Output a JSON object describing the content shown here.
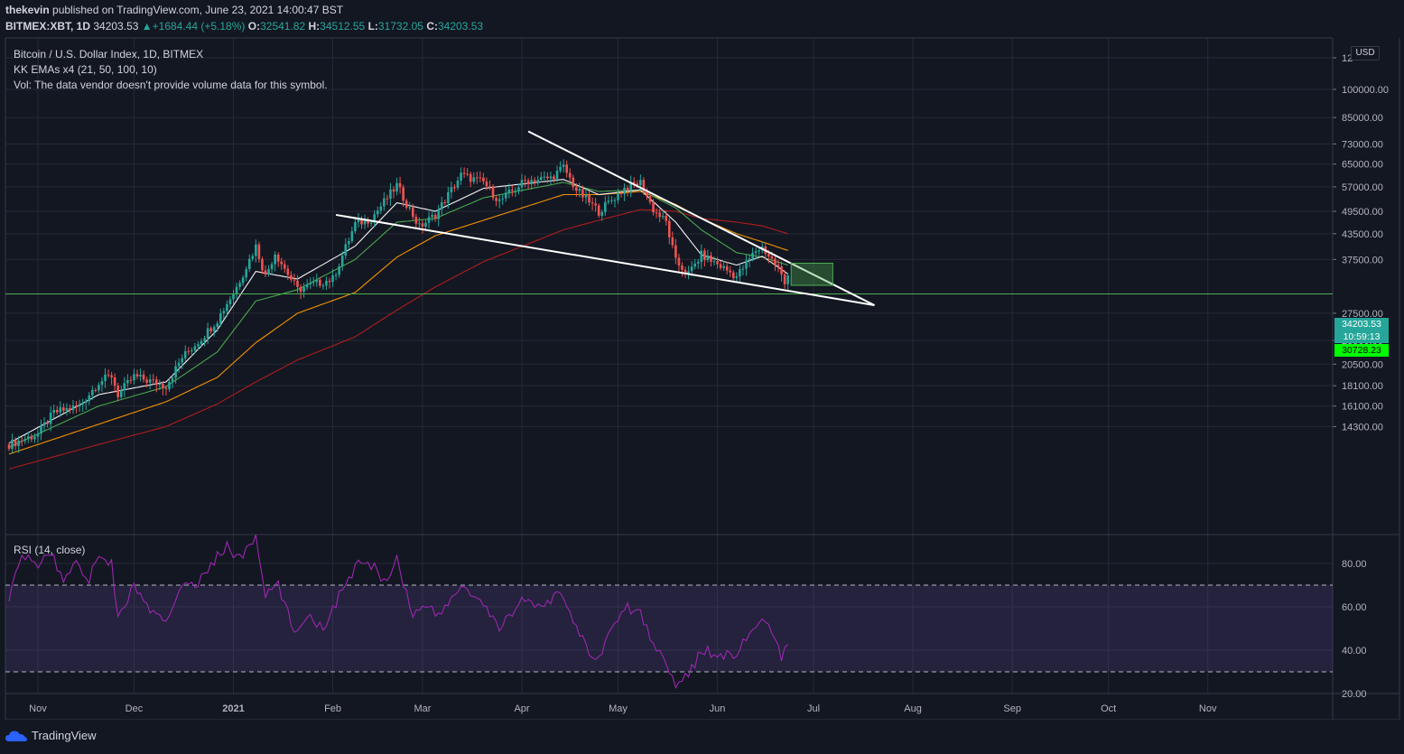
{
  "header": {
    "author": "thekevin",
    "published_text": "published on TradingView.com, June 23, 2021 14:00:47 BST",
    "symbol": "BITMEX:XBT, 1D",
    "last_price": "34203.53",
    "change": "+1684.44 (+5.18%)",
    "open_label": "O:",
    "open": "32541.82",
    "high_label": "H:",
    "high": "34512.55",
    "low_label": "L:",
    "low": "31732.05",
    "close_label": "C:",
    "close": "34203.53"
  },
  "legend": {
    "title": "Bitcoin / U.S. Dollar Index, 1D, BITMEX",
    "indicator": "KK EMAs x4 (21, 50, 100, 10)",
    "volume_note": "Vol: The data vendor doesn't provide volume data for this symbol."
  },
  "currency": "USD",
  "price_tags": {
    "last": "34203.53",
    "countdown": "10:59:13",
    "support": "30728.23"
  },
  "rsi": {
    "label": "RSI (14, close)",
    "upper_band": 70,
    "lower_band": 30
  },
  "branding": "TradingView",
  "colors": {
    "background": "#131722",
    "up": "#26a69a",
    "down": "#ef5350",
    "ema10": "#ffffff",
    "ema21": "#4caf50",
    "ema50": "#ff9800",
    "ema100": "#b71c1c",
    "rsi": "#9c27b0",
    "support": "#4caf50"
  },
  "chart_data": [
    {
      "type": "candlestick",
      "title": "Bitcoin / U.S. Dollar Index, 1D, BITMEX",
      "scale": "log",
      "x_tick_labels": [
        "Nov",
        "Dec",
        "2021",
        "Feb",
        "Mar",
        "Apr",
        "May",
        "Jun",
        "Jul",
        "Aug",
        "Sep",
        "Oct",
        "Nov"
      ],
      "y_tick_labels": [
        "12",
        "100000.00",
        "85000.00",
        "73000.00",
        "65000.00",
        "57000.00",
        "49500.00",
        "43500.00",
        "37500.00",
        "27500.00",
        "23500.00",
        "20500.00",
        "18100.00",
        "16100.00",
        "14300.00"
      ],
      "ylim": [
        13000,
        120000
      ],
      "x_start": "2020-10-23",
      "close_series": [
        [
          "2020-10-23",
          12900
        ],
        [
          "2020-11-01",
          13700
        ],
        [
          "2020-11-06",
          15500
        ],
        [
          "2020-11-14",
          16100
        ],
        [
          "2020-11-20",
          18500
        ],
        [
          "2020-11-24",
          19200
        ],
        [
          "2020-11-26",
          17200
        ],
        [
          "2020-12-01",
          19100
        ],
        [
          "2020-12-11",
          18100
        ],
        [
          "2020-12-16",
          21300
        ],
        [
          "2020-12-22",
          23800
        ],
        [
          "2020-12-27",
          26500
        ],
        [
          "2021-01-02",
          32000
        ],
        [
          "2021-01-08",
          40500
        ],
        [
          "2021-01-11",
          34000
        ],
        [
          "2021-01-14",
          39000
        ],
        [
          "2021-01-21",
          31500
        ],
        [
          "2021-01-26",
          32500
        ],
        [
          "2021-02-01",
          33500
        ],
        [
          "2021-02-08",
          46000
        ],
        [
          "2021-02-13",
          47500
        ],
        [
          "2021-02-21",
          57500
        ],
        [
          "2021-02-28",
          45200
        ],
        [
          "2021-03-05",
          48500
        ],
        [
          "2021-03-13",
          61000
        ],
        [
          "2021-03-20",
          58500
        ],
        [
          "2021-03-25",
          52500
        ],
        [
          "2021-04-02",
          59000
        ],
        [
          "2021-04-10",
          60000
        ],
        [
          "2021-04-14",
          63800
        ],
        [
          "2021-04-18",
          56000
        ],
        [
          "2021-04-25",
          49500
        ],
        [
          "2021-05-03",
          56500
        ],
        [
          "2021-05-08",
          58500
        ],
        [
          "2021-05-12",
          50000
        ],
        [
          "2021-05-16",
          46500
        ],
        [
          "2021-05-19",
          37000
        ],
        [
          "2021-05-23",
          34500
        ],
        [
          "2021-05-27",
          38500
        ],
        [
          "2021-06-01",
          36500
        ],
        [
          "2021-06-07",
          34000
        ],
        [
          "2021-06-13",
          39500
        ],
        [
          "2021-06-15",
          40200
        ],
        [
          "2021-06-20",
          35700
        ],
        [
          "2021-06-22",
          32500
        ],
        [
          "2021-06-23",
          34203
        ]
      ],
      "ema10_series": [
        [
          "2020-10-23",
          13000
        ],
        [
          "2020-11-20",
          17200
        ],
        [
          "2020-12-11",
          18500
        ],
        [
          "2020-12-27",
          25000
        ],
        [
          "2021-01-08",
          35000
        ],
        [
          "2021-01-21",
          33500
        ],
        [
          "2021-02-08",
          40500
        ],
        [
          "2021-02-21",
          52000
        ],
        [
          "2021-03-05",
          49500
        ],
        [
          "2021-03-20",
          56500
        ],
        [
          "2021-04-14",
          59500
        ],
        [
          "2021-04-25",
          54500
        ],
        [
          "2021-05-08",
          56000
        ],
        [
          "2021-05-19",
          46500
        ],
        [
          "2021-05-27",
          38500
        ],
        [
          "2021-06-07",
          36300
        ],
        [
          "2021-06-15",
          38200
        ],
        [
          "2021-06-23",
          34500
        ]
      ],
      "ema21_series": [
        [
          "2020-10-23",
          12700
        ],
        [
          "2020-11-20",
          16100
        ],
        [
          "2020-12-11",
          18000
        ],
        [
          "2020-12-27",
          22000
        ],
        [
          "2021-01-08",
          29500
        ],
        [
          "2021-01-21",
          31500
        ],
        [
          "2021-02-08",
          37500
        ],
        [
          "2021-02-21",
          46500
        ],
        [
          "2021-03-05",
          47500
        ],
        [
          "2021-03-20",
          53500
        ],
        [
          "2021-04-14",
          58500
        ],
        [
          "2021-04-25",
          55500
        ],
        [
          "2021-05-08",
          56000
        ],
        [
          "2021-05-19",
          50500
        ],
        [
          "2021-05-27",
          44500
        ],
        [
          "2021-06-07",
          39000
        ],
        [
          "2021-06-15",
          38000
        ],
        [
          "2021-06-23",
          36300
        ]
      ],
      "ema50_series": [
        [
          "2020-10-23",
          12200
        ],
        [
          "2020-11-20",
          14500
        ],
        [
          "2020-12-11",
          16500
        ],
        [
          "2020-12-27",
          19000
        ],
        [
          "2021-01-08",
          23200
        ],
        [
          "2021-01-21",
          27500
        ],
        [
          "2021-02-08",
          31000
        ],
        [
          "2021-02-21",
          38000
        ],
        [
          "2021-03-05",
          43000
        ],
        [
          "2021-03-20",
          47000
        ],
        [
          "2021-04-14",
          54500
        ],
        [
          "2021-04-25",
          54500
        ],
        [
          "2021-05-08",
          55500
        ],
        [
          "2021-05-19",
          51500
        ],
        [
          "2021-05-27",
          47500
        ],
        [
          "2021-06-07",
          43500
        ],
        [
          "2021-06-15",
          41500
        ],
        [
          "2021-06-23",
          39500
        ]
      ],
      "ema100_series": [
        [
          "2020-10-23",
          11200
        ],
        [
          "2020-11-20",
          12900
        ],
        [
          "2020-12-11",
          14300
        ],
        [
          "2020-12-27",
          16300
        ],
        [
          "2021-01-08",
          18500
        ],
        [
          "2021-01-21",
          21000
        ],
        [
          "2021-02-08",
          24000
        ],
        [
          "2021-02-21",
          28000
        ],
        [
          "2021-03-05",
          32000
        ],
        [
          "2021-03-20",
          37000
        ],
        [
          "2021-04-14",
          44500
        ],
        [
          "2021-04-25",
          47000
        ],
        [
          "2021-05-08",
          50000
        ],
        [
          "2021-05-19",
          49500
        ],
        [
          "2021-05-27",
          47500
        ],
        [
          "2021-06-07",
          46500
        ],
        [
          "2021-06-15",
          45500
        ],
        [
          "2021-06-23",
          43500
        ]
      ],
      "trendlines": [
        {
          "x1": "2021-02-02",
          "y1": 48500,
          "x2": "2021-07-20",
          "y2": 28800
        },
        {
          "x1": "2021-04-03",
          "y1": 78500,
          "x2": "2021-07-20",
          "y2": 28800
        }
      ],
      "support_level": 30728.23,
      "target_box": {
        "x1": "2021-06-24",
        "x2": "2021-07-07",
        "y1": 36700,
        "y2": 32300
      }
    },
    {
      "type": "line",
      "title": "RSI (14, close)",
      "y_tick_labels": [
        "80.00",
        "60.00",
        "40.00",
        "20.00"
      ],
      "ylim": [
        20,
        90
      ],
      "series": [
        {
          "values": [
            [
              "2020-10-23",
              65
            ],
            [
              "2020-10-27",
              83
            ],
            [
              "2020-11-01",
              80
            ],
            [
              "2020-11-05",
              85
            ],
            [
              "2020-11-09",
              72
            ],
            [
              "2020-11-13",
              82
            ],
            [
              "2020-11-17",
              72
            ],
            [
              "2020-11-20",
              85
            ],
            [
              "2020-11-24",
              80
            ],
            [
              "2020-11-26",
              54
            ],
            [
              "2020-12-01",
              70
            ],
            [
              "2020-12-06",
              58
            ],
            [
              "2020-12-11",
              52
            ],
            [
              "2020-12-16",
              72
            ],
            [
              "2020-12-20",
              68
            ],
            [
              "2020-12-25",
              80
            ],
            [
              "2020-12-30",
              88
            ],
            [
              "2021-01-03",
              82
            ],
            [
              "2021-01-08",
              92
            ],
            [
              "2021-01-11",
              65
            ],
            [
              "2021-01-15",
              70
            ],
            [
              "2021-01-20",
              48
            ],
            [
              "2021-01-24",
              57
            ],
            [
              "2021-01-29",
              50
            ],
            [
              "2021-02-04",
              68
            ],
            [
              "2021-02-09",
              80
            ],
            [
              "2021-02-14",
              78
            ],
            [
              "2021-02-17",
              72
            ],
            [
              "2021-02-21",
              82
            ],
            [
              "2021-02-26",
              56
            ],
            [
              "2021-03-02",
              62
            ],
            [
              "2021-03-06",
              55
            ],
            [
              "2021-03-13",
              70
            ],
            [
              "2021-03-19",
              62
            ],
            [
              "2021-03-25",
              50
            ],
            [
              "2021-04-01",
              64
            ],
            [
              "2021-04-07",
              58
            ],
            [
              "2021-04-13",
              68
            ],
            [
              "2021-04-18",
              50
            ],
            [
              "2021-04-24",
              34
            ],
            [
              "2021-04-27",
              44
            ],
            [
              "2021-05-03",
              60
            ],
            [
              "2021-05-08",
              58
            ],
            [
              "2021-05-12",
              42
            ],
            [
              "2021-05-16",
              36
            ],
            [
              "2021-05-19",
              24
            ],
            [
              "2021-05-23",
              28
            ],
            [
              "2021-05-27",
              40
            ],
            [
              "2021-06-02",
              38
            ],
            [
              "2021-06-07",
              38
            ],
            [
              "2021-06-11",
              48
            ],
            [
              "2021-06-15",
              55
            ],
            [
              "2021-06-19",
              44
            ],
            [
              "2021-06-21",
              36
            ],
            [
              "2021-06-23",
              42
            ]
          ]
        }
      ]
    }
  ]
}
